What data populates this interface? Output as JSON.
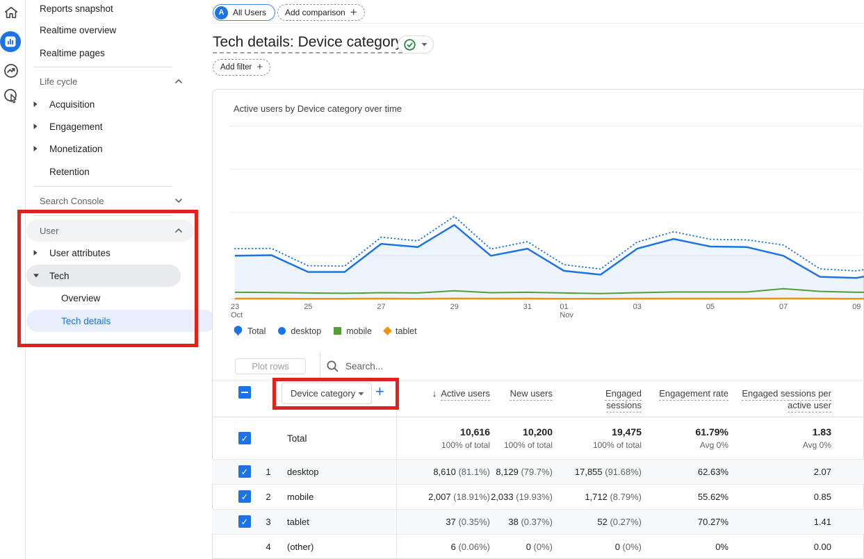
{
  "icons": {
    "sort_desc": "↓",
    "plus": "+",
    "check": "✓"
  },
  "rail": {
    "items": [
      "home",
      "reports",
      "explore",
      "advertising"
    ]
  },
  "sidebar": {
    "items": [
      {
        "label": "Reports snapshot"
      },
      {
        "label": "Realtime overview"
      },
      {
        "label": "Realtime pages"
      },
      {
        "label": "Life cycle"
      },
      {
        "label": "Acquisition"
      },
      {
        "label": "Engagement"
      },
      {
        "label": "Monetization"
      },
      {
        "label": "Retention"
      },
      {
        "label": "Search Console"
      },
      {
        "label": "User"
      },
      {
        "label": "User attributes"
      },
      {
        "label": "Tech"
      },
      {
        "label": "Overview"
      },
      {
        "label": "Tech details"
      }
    ]
  },
  "header": {
    "audience_initial": "A",
    "audience_pill": "All Users",
    "add_comparison": "Add comparison",
    "title": "Tech details: Device category",
    "add_filter": "Add filter"
  },
  "chart": {
    "title": "Active users by Device category over time",
    "legend": [
      {
        "label": "Total",
        "shape": "pin",
        "color": "#1a73e8"
      },
      {
        "label": "desktop",
        "shape": "circle",
        "color": "#1a73e8"
      },
      {
        "label": "mobile",
        "shape": "square",
        "color": "#549e39"
      },
      {
        "label": "tablet",
        "shape": "diamond",
        "color": "#ef930d"
      }
    ]
  },
  "chart_data": {
    "type": "line",
    "title": "Active users by Device category over time",
    "x": [
      "Oct 23",
      "Oct 24",
      "Oct 25",
      "Oct 26",
      "Oct 27",
      "Oct 28",
      "Oct 29",
      "Oct 30",
      "Oct 31",
      "Nov 01",
      "Nov 02",
      "Nov 03",
      "Nov 04",
      "Nov 05",
      "Nov 06",
      "Nov 07",
      "Nov 08",
      "Nov 09",
      "Nov 10"
    ],
    "series": [
      {
        "name": "Total",
        "style": "dotted",
        "color": "#1a73e8",
        "values": [
          465,
          468,
          307,
          304,
          571,
          537,
          764,
          461,
          530,
          317,
          277,
          526,
          622,
          552,
          547,
          499,
          278,
          259,
          322
        ]
      },
      {
        "name": "desktop",
        "style": "solid",
        "color": "#1a73e8",
        "values": [
          400,
          405,
          250,
          250,
          510,
          480,
          685,
          400,
          465,
          260,
          225,
          465,
          555,
          485,
          480,
          400,
          205,
          195,
          255
        ]
      },
      {
        "name": "mobile",
        "style": "solid",
        "color": "#549e39",
        "values": [
          62,
          60,
          55,
          52,
          58,
          55,
          75,
          58,
          62,
          55,
          50,
          58,
          64,
          64,
          64,
          95,
          70,
          62,
          64
        ]
      },
      {
        "name": "tablet",
        "style": "solid",
        "color": "#ef930d",
        "values": [
          3,
          3,
          2,
          2,
          3,
          2,
          4,
          3,
          3,
          2,
          2,
          3,
          3,
          3,
          3,
          4,
          3,
          2,
          3
        ]
      }
    ],
    "ylim": [
      0,
      1600
    ],
    "gridlines": [
      400,
      800,
      1200,
      1600
    ],
    "xticks": [
      {
        "i": 0,
        "label": "23",
        "sub": "Oct"
      },
      {
        "i": 2,
        "label": "25"
      },
      {
        "i": 4,
        "label": "27"
      },
      {
        "i": 6,
        "label": "29"
      },
      {
        "i": 8,
        "label": "31"
      },
      {
        "i": 9,
        "label": "01",
        "sub": "Nov"
      },
      {
        "i": 11,
        "label": "03"
      },
      {
        "i": 13,
        "label": "05"
      },
      {
        "i": 15,
        "label": "07"
      },
      {
        "i": 17,
        "label": "09"
      }
    ],
    "legend_position": "bottom",
    "grid": true
  },
  "table": {
    "plot_rows": "Plot rows",
    "search_placeholder": "Search...",
    "dimension_selector": "Device category",
    "columns": [
      {
        "label": "Active users",
        "sorted": "desc"
      },
      {
        "label": "New users"
      },
      {
        "label": "Engaged sessions"
      },
      {
        "label": "Engagement rate"
      },
      {
        "label": "Engaged sessions per active user"
      }
    ],
    "total_row": {
      "label": "Total",
      "cells": [
        {
          "value": "10,616",
          "sub": "100% of total"
        },
        {
          "value": "10,200",
          "sub": "100% of total"
        },
        {
          "value": "19,475",
          "sub": "100% of total"
        },
        {
          "value": "61.79%",
          "sub": "Avg 0%"
        },
        {
          "value": "1.83",
          "sub": "Avg 0%"
        }
      ]
    },
    "rows": [
      {
        "rank": "1",
        "name": "desktop",
        "checked": true,
        "cells": [
          "8,610 (81.1%)",
          "8,129 (79.7%)",
          "17,855 (91.68%)",
          "62.63%",
          "2.07"
        ]
      },
      {
        "rank": "2",
        "name": "mobile",
        "checked": true,
        "cells": [
          "2,007 (18.91%)",
          "2,033 (19.93%)",
          "1,712 (8.79%)",
          "55.62%",
          "0.85"
        ]
      },
      {
        "rank": "3",
        "name": "tablet",
        "checked": true,
        "cells": [
          "37 (0.35%)",
          "38 (0.37%)",
          "52 (0.27%)",
          "70.27%",
          "1.41"
        ]
      },
      {
        "rank": "4",
        "name": "(other)",
        "checked": false,
        "cells": [
          "6 (0.06%)",
          "0 (0%)",
          "0 (0%)",
          "0%",
          "0.00"
        ]
      }
    ]
  }
}
